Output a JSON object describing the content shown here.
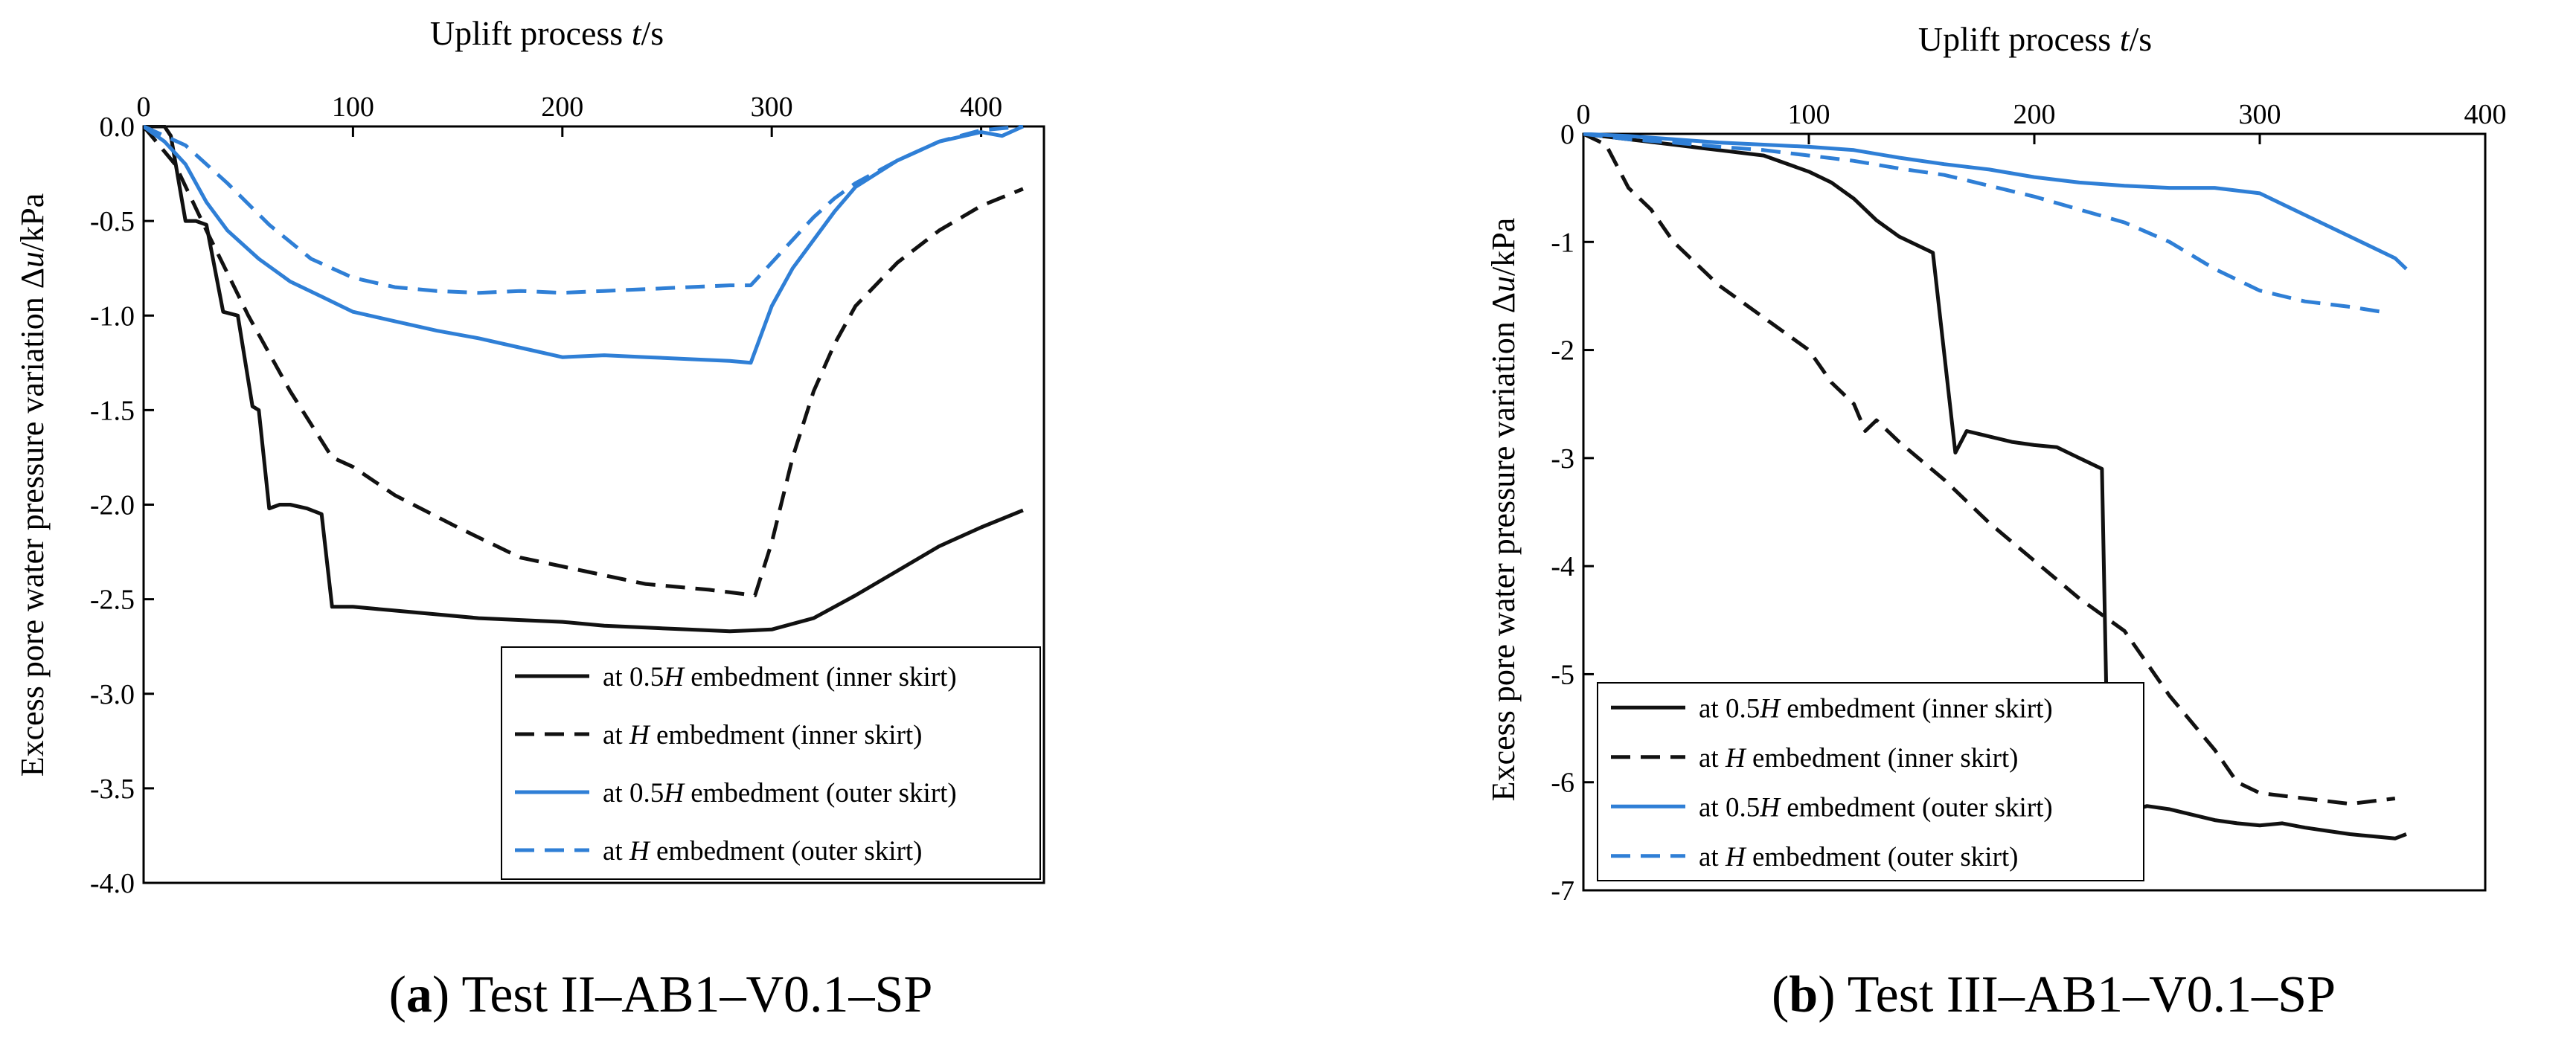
{
  "colors": {
    "black": "#111111",
    "blue": "#2f7fd6"
  },
  "chart_data": [
    {
      "type": "line",
      "caption": {
        "label": "a",
        "open": "(",
        "close": ")",
        "text": " Test II–AB1–V0.1–SP"
      },
      "xlabel": {
        "pre": "Uplift process ",
        "var": "t",
        "post": "/s"
      },
      "ylabel": {
        "pre": "Excess pore water pressure variation Δ",
        "var": "u",
        "post": "/kPa"
      },
      "xlim": [
        0,
        430
      ],
      "ylim": [
        -4.0,
        0.0
      ],
      "xticks": [
        0,
        100,
        200,
        300,
        400
      ],
      "xtick_labels": [
        "0",
        "100",
        "200",
        "300",
        "400"
      ],
      "yticks": [
        0.0,
        -0.5,
        -1.0,
        -1.5,
        -2.0,
        -2.5,
        -3.0,
        -3.5,
        -4.0
      ],
      "ytick_labels": [
        "0.0",
        "-0.5",
        "-1.0",
        "-1.5",
        "-2.0",
        "-2.5",
        "-3.0",
        "-3.5",
        "-4.0"
      ],
      "legend_position": "bottom-right",
      "series": [
        {
          "name": {
            "pre": "at 0.5",
            "var": "H",
            "post": " embedment (inner skirt)"
          },
          "color": "#111111",
          "dash": "solid",
          "x": [
            0,
            10,
            13,
            20,
            25,
            30,
            38,
            45,
            52,
            55,
            60,
            65,
            70,
            78,
            85,
            90,
            100,
            120,
            140,
            160,
            180,
            200,
            220,
            240,
            260,
            280,
            300,
            320,
            340,
            360,
            380,
            400,
            420
          ],
          "y": [
            0,
            0,
            -0.05,
            -0.5,
            -0.5,
            -0.52,
            -0.98,
            -1.0,
            -1.48,
            -1.5,
            -2.02,
            -2.0,
            -2.0,
            -2.02,
            -2.05,
            -2.54,
            -2.54,
            -2.56,
            -2.58,
            -2.6,
            -2.61,
            -2.62,
            -2.64,
            -2.65,
            -2.66,
            -2.67,
            -2.66,
            -2.6,
            -2.48,
            -2.35,
            -2.22,
            -2.12,
            -2.03
          ]
        },
        {
          "name": {
            "pre": "at ",
            "var": "H",
            "post": " embedment (inner skirt)"
          },
          "color": "#111111",
          "dash": "dashed",
          "x": [
            0,
            15,
            30,
            50,
            70,
            90,
            100,
            120,
            150,
            180,
            210,
            240,
            270,
            292,
            300,
            310,
            320,
            330,
            340,
            360,
            380,
            400,
            420
          ],
          "y": [
            0,
            -0.2,
            -0.55,
            -1.0,
            -1.4,
            -1.75,
            -1.8,
            -1.95,
            -2.12,
            -2.28,
            -2.35,
            -2.42,
            -2.45,
            -2.48,
            -2.2,
            -1.75,
            -1.4,
            -1.15,
            -0.95,
            -0.72,
            -0.55,
            -0.42,
            -0.33
          ]
        },
        {
          "name": {
            "pre": "at 0.5",
            "var": "H",
            "post": " embedment (outer skirt)"
          },
          "color": "#2f7fd6",
          "dash": "solid",
          "x": [
            0,
            10,
            20,
            30,
            40,
            55,
            70,
            85,
            100,
            120,
            140,
            160,
            180,
            200,
            220,
            240,
            260,
            280,
            290,
            300,
            310,
            320,
            330,
            340,
            360,
            380,
            400,
            410,
            420
          ],
          "y": [
            0,
            -0.08,
            -0.2,
            -0.4,
            -0.55,
            -0.7,
            -0.82,
            -0.9,
            -0.98,
            -1.03,
            -1.08,
            -1.12,
            -1.17,
            -1.22,
            -1.21,
            -1.22,
            -1.23,
            -1.24,
            -1.25,
            -0.95,
            -0.75,
            -0.6,
            -0.45,
            -0.32,
            -0.18,
            -0.08,
            -0.03,
            -0.05,
            0.0
          ]
        },
        {
          "name": {
            "pre": "at ",
            "var": "H",
            "post": " embedment (outer skirt)"
          },
          "color": "#2f7fd6",
          "dash": "dashed",
          "x": [
            0,
            20,
            40,
            60,
            80,
            100,
            120,
            140,
            160,
            180,
            200,
            220,
            240,
            260,
            280,
            290,
            300,
            310,
            320,
            330,
            340,
            360,
            380,
            400,
            420
          ],
          "y": [
            0,
            -0.1,
            -0.3,
            -0.52,
            -0.7,
            -0.8,
            -0.85,
            -0.87,
            -0.88,
            -0.87,
            -0.88,
            -0.87,
            -0.86,
            -0.85,
            -0.84,
            -0.84,
            -0.72,
            -0.6,
            -0.48,
            -0.38,
            -0.3,
            -0.18,
            -0.08,
            -0.02,
            0.0
          ]
        }
      ]
    },
    {
      "type": "line",
      "caption": {
        "label": "b",
        "open": "(",
        "close": ")",
        "text": " Test III–AB1–V0.1–SP"
      },
      "xlabel": {
        "pre": "Uplift process ",
        "var": "t",
        "post": "/s"
      },
      "ylabel": {
        "pre": "Excess pore water pressure variation Δ",
        "var": "u",
        "post": "/kPa"
      },
      "xlim": [
        0,
        400
      ],
      "ylim": [
        -7,
        0
      ],
      "xticks": [
        0,
        100,
        200,
        300,
        400
      ],
      "xtick_labels": [
        "0",
        "100",
        "200",
        "300",
        "400"
      ],
      "yticks": [
        0,
        -1,
        -2,
        -3,
        -4,
        -5,
        -6,
        -7
      ],
      "ytick_labels": [
        "0",
        "-1",
        "-2",
        "-3",
        "-4",
        "-5",
        "-6",
        "-7"
      ],
      "legend_position": "bottom-left",
      "series": [
        {
          "name": {
            "pre": "at 0.5",
            "var": "H",
            "post": " embedment (inner skirt)"
          },
          "color": "#111111",
          "dash": "solid",
          "x": [
            0,
            20,
            40,
            60,
            80,
            100,
            110,
            120,
            130,
            140,
            150,
            155,
            165,
            170,
            180,
            190,
            200,
            210,
            220,
            230,
            233,
            240,
            250,
            260,
            270,
            280,
            290,
            300,
            310,
            320,
            330,
            340,
            350,
            360,
            365
          ],
          "y": [
            0,
            -0.05,
            -0.1,
            -0.15,
            -0.2,
            -0.35,
            -0.45,
            -0.6,
            -0.8,
            -0.95,
            -1.05,
            -1.1,
            -2.95,
            -2.75,
            -2.8,
            -2.85,
            -2.88,
            -2.9,
            -3.0,
            -3.1,
            -6.3,
            -6.28,
            -6.22,
            -6.25,
            -6.3,
            -6.35,
            -6.38,
            -6.4,
            -6.38,
            -6.42,
            -6.45,
            -6.48,
            -6.5,
            -6.52,
            -6.48
          ]
        },
        {
          "name": {
            "pre": "at ",
            "var": "H",
            "post": " embedment (inner skirt)"
          },
          "color": "#111111",
          "dash": "dashed",
          "x": [
            0,
            10,
            20,
            30,
            40,
            60,
            80,
            100,
            110,
            120,
            125,
            130,
            140,
            160,
            180,
            200,
            220,
            230,
            240,
            260,
            280,
            290,
            300,
            320,
            340,
            360
          ],
          "y": [
            0,
            -0.1,
            -0.5,
            -0.7,
            -1.0,
            -1.4,
            -1.7,
            -2.0,
            -2.3,
            -2.5,
            -2.75,
            -2.65,
            -2.85,
            -3.2,
            -3.6,
            -3.95,
            -4.3,
            -4.45,
            -4.6,
            -5.2,
            -5.7,
            -6.0,
            -6.1,
            -6.15,
            -6.2,
            -6.15
          ]
        },
        {
          "name": {
            "pre": "at 0.5",
            "var": "H",
            "post": " embedment (outer skirt)"
          },
          "color": "#2f7fd6",
          "dash": "solid",
          "x": [
            0,
            20,
            40,
            60,
            80,
            100,
            120,
            140,
            160,
            180,
            200,
            220,
            240,
            260,
            280,
            300,
            320,
            340,
            360,
            365
          ],
          "y": [
            0,
            -0.02,
            -0.05,
            -0.08,
            -0.1,
            -0.12,
            -0.15,
            -0.22,
            -0.28,
            -0.33,
            -0.4,
            -0.45,
            -0.48,
            -0.5,
            -0.5,
            -0.55,
            -0.75,
            -0.95,
            -1.15,
            -1.25
          ]
        },
        {
          "name": {
            "pre": "at ",
            "var": "H",
            "post": " embedment (outer skirt)"
          },
          "color": "#2f7fd6",
          "dash": "dashed",
          "x": [
            0,
            20,
            40,
            60,
            80,
            100,
            120,
            140,
            160,
            180,
            200,
            220,
            240,
            260,
            280,
            300,
            320,
            340,
            355
          ],
          "y": [
            0,
            -0.05,
            -0.08,
            -0.12,
            -0.15,
            -0.2,
            -0.25,
            -0.32,
            -0.38,
            -0.48,
            -0.58,
            -0.7,
            -0.82,
            -1.0,
            -1.25,
            -1.45,
            -1.55,
            -1.6,
            -1.65
          ]
        }
      ]
    }
  ]
}
